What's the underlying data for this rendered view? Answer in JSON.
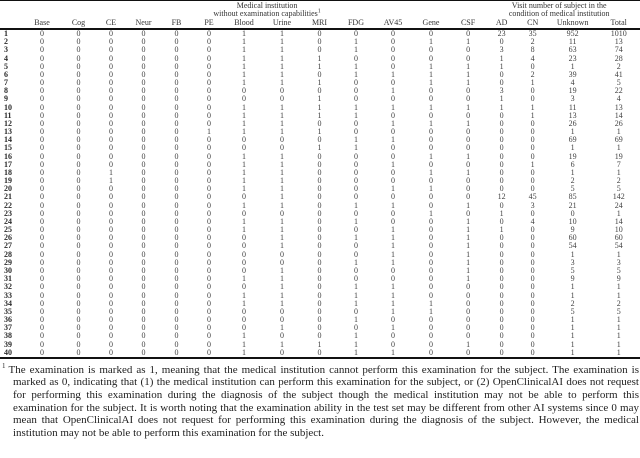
{
  "table": {
    "group_headers": [
      {
        "line1": "Medical institution",
        "line2": "without examination capabilities",
        "sup": "1"
      },
      {
        "line1": "Visit number of subject in the",
        "line2": "condition of medical institution",
        "sup": ""
      }
    ],
    "columns": [
      "Base",
      "Cog",
      "CE",
      "Neur",
      "FB",
      "PE",
      "Blood",
      "Urine",
      "MRI",
      "FDG",
      "AV45",
      "Gene",
      "CSF",
      "AD",
      "CN",
      "Unknown",
      "Total"
    ],
    "rows": [
      {
        "id": "1",
        "values": [
          0,
          0,
          0,
          0,
          0,
          0,
          1,
          1,
          0,
          0,
          0,
          0,
          0,
          23,
          35,
          952,
          1010
        ]
      },
      {
        "id": "2",
        "values": [
          0,
          0,
          0,
          0,
          0,
          0,
          1,
          1,
          0,
          1,
          0,
          1,
          1,
          0,
          2,
          11,
          13
        ]
      },
      {
        "id": "3",
        "values": [
          0,
          0,
          0,
          0,
          0,
          0,
          1,
          1,
          0,
          1,
          0,
          0,
          0,
          3,
          8,
          63,
          74
        ]
      },
      {
        "id": "4",
        "values": [
          0,
          0,
          0,
          0,
          0,
          0,
          1,
          1,
          1,
          0,
          0,
          0,
          0,
          1,
          4,
          23,
          28
        ]
      },
      {
        "id": "5",
        "values": [
          0,
          0,
          0,
          0,
          0,
          0,
          1,
          1,
          1,
          1,
          0,
          1,
          1,
          1,
          0,
          1,
          2
        ]
      },
      {
        "id": "6",
        "values": [
          0,
          0,
          0,
          0,
          0,
          0,
          1,
          1,
          0,
          1,
          1,
          1,
          1,
          0,
          2,
          39,
          41
        ]
      },
      {
        "id": "7",
        "values": [
          0,
          0,
          0,
          0,
          0,
          0,
          1,
          1,
          1,
          0,
          0,
          1,
          1,
          0,
          1,
          4,
          5
        ]
      },
      {
        "id": "8",
        "values": [
          0,
          0,
          0,
          0,
          0,
          0,
          0,
          0,
          0,
          0,
          1,
          0,
          0,
          3,
          0,
          19,
          22
        ]
      },
      {
        "id": "9",
        "values": [
          0,
          0,
          0,
          0,
          0,
          0,
          0,
          0,
          1,
          0,
          0,
          0,
          0,
          1,
          0,
          3,
          4
        ]
      },
      {
        "id": "10",
        "values": [
          0,
          0,
          0,
          0,
          0,
          0,
          1,
          1,
          1,
          1,
          1,
          1,
          1,
          1,
          1,
          11,
          13
        ]
      },
      {
        "id": "11",
        "values": [
          0,
          0,
          0,
          0,
          0,
          0,
          1,
          1,
          1,
          1,
          0,
          0,
          0,
          0,
          1,
          13,
          14
        ]
      },
      {
        "id": "12",
        "values": [
          0,
          0,
          0,
          0,
          0,
          0,
          1,
          1,
          0,
          0,
          1,
          1,
          1,
          0,
          0,
          26,
          26
        ]
      },
      {
        "id": "13",
        "values": [
          0,
          0,
          0,
          0,
          0,
          1,
          1,
          1,
          1,
          0,
          0,
          0,
          0,
          0,
          0,
          1,
          1
        ]
      },
      {
        "id": "14",
        "values": [
          0,
          0,
          0,
          0,
          0,
          0,
          0,
          0,
          0,
          1,
          1,
          0,
          0,
          0,
          0,
          69,
          69
        ]
      },
      {
        "id": "15",
        "values": [
          0,
          0,
          0,
          0,
          0,
          0,
          0,
          0,
          1,
          1,
          0,
          0,
          0,
          0,
          0,
          1,
          1
        ]
      },
      {
        "id": "16",
        "values": [
          0,
          0,
          0,
          0,
          0,
          0,
          1,
          1,
          0,
          0,
          0,
          1,
          1,
          0,
          0,
          19,
          19
        ]
      },
      {
        "id": "17",
        "values": [
          0,
          0,
          0,
          0,
          0,
          0,
          1,
          1,
          0,
          0,
          1,
          0,
          0,
          0,
          1,
          6,
          7
        ]
      },
      {
        "id": "18",
        "values": [
          0,
          0,
          1,
          0,
          0,
          0,
          1,
          1,
          0,
          0,
          0,
          1,
          1,
          0,
          0,
          1,
          1
        ]
      },
      {
        "id": "19",
        "values": [
          0,
          0,
          1,
          0,
          0,
          0,
          1,
          1,
          0,
          0,
          0,
          0,
          0,
          0,
          0,
          2,
          2
        ]
      },
      {
        "id": "20",
        "values": [
          0,
          0,
          0,
          0,
          0,
          0,
          1,
          1,
          0,
          0,
          1,
          1,
          0,
          0,
          0,
          5,
          5
        ]
      },
      {
        "id": "21",
        "values": [
          0,
          0,
          0,
          0,
          0,
          0,
          0,
          1,
          0,
          0,
          0,
          0,
          0,
          12,
          45,
          85,
          142
        ]
      },
      {
        "id": "22",
        "values": [
          0,
          0,
          0,
          0,
          0,
          0,
          1,
          1,
          0,
          1,
          1,
          0,
          1,
          0,
          3,
          21,
          24
        ]
      },
      {
        "id": "23",
        "values": [
          0,
          0,
          0,
          0,
          0,
          0,
          0,
          0,
          0,
          0,
          0,
          1,
          0,
          1,
          0,
          0,
          1
        ]
      },
      {
        "id": "24",
        "values": [
          0,
          0,
          0,
          0,
          0,
          0,
          1,
          1,
          0,
          1,
          0,
          0,
          1,
          0,
          4,
          10,
          14
        ]
      },
      {
        "id": "25",
        "values": [
          0,
          0,
          0,
          0,
          0,
          0,
          1,
          1,
          0,
          0,
          1,
          0,
          1,
          1,
          0,
          9,
          10
        ]
      },
      {
        "id": "26",
        "values": [
          0,
          0,
          0,
          0,
          0,
          0,
          0,
          1,
          0,
          1,
          1,
          0,
          1,
          0,
          0,
          60,
          60
        ]
      },
      {
        "id": "27",
        "values": [
          0,
          0,
          0,
          0,
          0,
          0,
          0,
          1,
          0,
          0,
          1,
          0,
          1,
          0,
          0,
          54,
          54
        ]
      },
      {
        "id": "28",
        "values": [
          0,
          0,
          0,
          0,
          0,
          0,
          0,
          0,
          0,
          0,
          1,
          0,
          1,
          0,
          0,
          1,
          1
        ]
      },
      {
        "id": "29",
        "values": [
          0,
          0,
          0,
          0,
          0,
          0,
          0,
          0,
          0,
          1,
          1,
          0,
          1,
          0,
          0,
          3,
          3
        ]
      },
      {
        "id": "30",
        "values": [
          0,
          0,
          0,
          0,
          0,
          0,
          0,
          1,
          0,
          0,
          0,
          0,
          1,
          0,
          0,
          5,
          5
        ]
      },
      {
        "id": "31",
        "values": [
          0,
          0,
          0,
          0,
          0,
          0,
          1,
          1,
          0,
          0,
          0,
          0,
          1,
          0,
          0,
          9,
          9
        ]
      },
      {
        "id": "32",
        "values": [
          0,
          0,
          0,
          0,
          0,
          0,
          0,
          1,
          0,
          1,
          1,
          0,
          0,
          0,
          0,
          1,
          1
        ]
      },
      {
        "id": "33",
        "values": [
          0,
          0,
          0,
          0,
          0,
          0,
          1,
          1,
          0,
          1,
          1,
          0,
          0,
          0,
          0,
          1,
          1
        ]
      },
      {
        "id": "34",
        "values": [
          0,
          0,
          0,
          0,
          0,
          0,
          1,
          1,
          0,
          1,
          1,
          1,
          0,
          0,
          0,
          2,
          2
        ]
      },
      {
        "id": "35",
        "values": [
          0,
          0,
          0,
          0,
          0,
          0,
          0,
          0,
          0,
          0,
          1,
          1,
          0,
          0,
          0,
          5,
          5
        ]
      },
      {
        "id": "36",
        "values": [
          0,
          0,
          0,
          0,
          0,
          0,
          0,
          0,
          0,
          1,
          0,
          0,
          0,
          0,
          0,
          1,
          1
        ]
      },
      {
        "id": "37",
        "values": [
          0,
          0,
          0,
          0,
          0,
          0,
          0,
          1,
          0,
          0,
          1,
          0,
          0,
          0,
          0,
          1,
          1
        ]
      },
      {
        "id": "38",
        "values": [
          0,
          0,
          0,
          0,
          0,
          0,
          1,
          0,
          0,
          1,
          0,
          0,
          0,
          0,
          0,
          1,
          1
        ]
      },
      {
        "id": "39",
        "values": [
          0,
          0,
          0,
          0,
          0,
          0,
          1,
          1,
          1,
          1,
          0,
          0,
          1,
          0,
          0,
          1,
          1
        ]
      },
      {
        "id": "40",
        "values": [
          0,
          0,
          0,
          0,
          0,
          0,
          1,
          0,
          0,
          1,
          1,
          0,
          0,
          0,
          0,
          1,
          1
        ]
      }
    ]
  },
  "footnote": {
    "marker": "1",
    "text": "The examination is marked as 1, meaning that the medical institution cannot perform this examination for the subject. The examination is marked as 0, indicating that (1) the medical institution can perform this examination for the subject, or (2) OpenClinicalAI does not request for performing this examination during the diagnosis of the subject though the medical institution may not be able to perform this examination for the subject. It is worth noting that the examination ability in the test set may be different from other AI systems since 0 may mean that OpenClinicalAI does not request for performing this examination during the diagnosis of the subject. However, the medical institution may not be able to perform this examination for the subject."
  }
}
